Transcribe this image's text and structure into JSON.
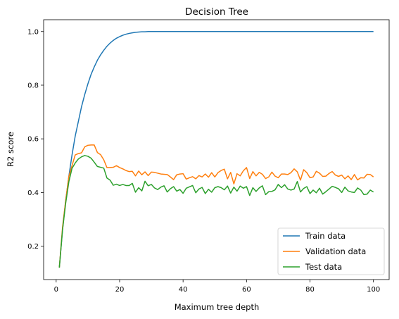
{
  "chart_data": {
    "type": "line",
    "title": "Decision Tree",
    "xlabel": "Maximum tree depth",
    "ylabel": "R2 score",
    "xlim": [
      -3.95,
      104.95
    ],
    "ylim": [
      0.0755,
      1.044
    ],
    "xticks": [
      0,
      20,
      40,
      60,
      80,
      100
    ],
    "xtick_labels": [
      "0",
      "20",
      "40",
      "60",
      "80",
      "100"
    ],
    "yticks": [
      0.2,
      0.4,
      0.6,
      0.8,
      1.0
    ],
    "ytick_labels": [
      "0.2",
      "0.4",
      "0.6",
      "0.8",
      "1.0"
    ],
    "grid": false,
    "legend_position": "lower-right",
    "colors": [
      "#1f77b4",
      "#ff7f0e",
      "#2ca02c"
    ],
    "series": [
      {
        "name": "Train data",
        "color": "#1f77b4",
        "x": [
          1,
          2,
          3,
          4,
          5,
          6,
          7,
          8,
          9,
          10,
          11,
          12,
          13,
          14,
          15,
          16,
          17,
          18,
          19,
          20,
          21,
          22,
          23,
          24,
          25,
          26,
          27,
          28,
          29,
          30,
          31,
          32,
          33,
          34,
          35,
          36,
          37,
          38,
          39,
          40,
          41,
          42,
          43,
          44,
          45,
          46,
          47,
          48,
          49,
          50,
          51,
          52,
          53,
          54,
          55,
          56,
          57,
          58,
          59,
          60,
          61,
          62,
          63,
          64,
          65,
          66,
          67,
          68,
          69,
          70,
          71,
          72,
          73,
          74,
          75,
          76,
          77,
          78,
          79,
          80,
          81,
          82,
          83,
          84,
          85,
          86,
          87,
          88,
          89,
          90,
          91,
          92,
          93,
          94,
          95,
          96,
          97,
          98,
          99,
          100
        ],
        "y": [
          0.12,
          0.26,
          0.37,
          0.46,
          0.54,
          0.61,
          0.665,
          0.72,
          0.765,
          0.805,
          0.84,
          0.868,
          0.893,
          0.913,
          0.93,
          0.945,
          0.957,
          0.967,
          0.975,
          0.981,
          0.986,
          0.99,
          0.993,
          0.995,
          0.997,
          0.998,
          0.999,
          0.999,
          1.0,
          1.0,
          1.0,
          1.0,
          1.0,
          1.0,
          1.0,
          1.0,
          1.0,
          1.0,
          1.0,
          1.0,
          1.0,
          1.0,
          1.0,
          1.0,
          1.0,
          1.0,
          1.0,
          1.0,
          1.0,
          1.0,
          1.0,
          1.0,
          1.0,
          1.0,
          1.0,
          1.0,
          1.0,
          1.0,
          1.0,
          1.0,
          1.0,
          1.0,
          1.0,
          1.0,
          1.0,
          1.0,
          1.0,
          1.0,
          1.0,
          1.0,
          1.0,
          1.0,
          1.0,
          1.0,
          1.0,
          1.0,
          1.0,
          1.0,
          1.0,
          1.0,
          1.0,
          1.0,
          1.0,
          1.0,
          1.0,
          1.0,
          1.0,
          1.0,
          1.0,
          1.0,
          1.0,
          1.0,
          1.0,
          1.0,
          1.0,
          1.0,
          1.0,
          1.0,
          1.0,
          1.0
        ]
      },
      {
        "name": "Validation data",
        "color": "#ff7f0e",
        "x": [
          1,
          2,
          3,
          4,
          5,
          6,
          7,
          8,
          9,
          10,
          11,
          12,
          13,
          14,
          15,
          16,
          17,
          18,
          19,
          20,
          21,
          22,
          23,
          24,
          25,
          26,
          27,
          28,
          29,
          30,
          31,
          32,
          33,
          34,
          35,
          36,
          37,
          38,
          39,
          40,
          41,
          42,
          43,
          44,
          45,
          46,
          47,
          48,
          49,
          50,
          51,
          52,
          53,
          54,
          55,
          56,
          57,
          58,
          59,
          60,
          61,
          62,
          63,
          64,
          65,
          66,
          67,
          68,
          69,
          70,
          71,
          72,
          73,
          74,
          75,
          76,
          77,
          78,
          79,
          80,
          81,
          82,
          83,
          84,
          85,
          86,
          87,
          88,
          89,
          90,
          91,
          92,
          93,
          94,
          95,
          96,
          97,
          98,
          99,
          100
        ],
        "y": [
          0.12,
          0.27,
          0.37,
          0.46,
          0.5,
          0.54,
          0.545,
          0.548,
          0.57,
          0.576,
          0.577,
          0.577,
          0.549,
          0.541,
          0.522,
          0.493,
          0.493,
          0.494,
          0.5,
          0.493,
          0.488,
          0.482,
          0.478,
          0.479,
          0.462,
          0.48,
          0.466,
          0.477,
          0.463,
          0.476,
          0.475,
          0.472,
          0.469,
          0.468,
          0.467,
          0.458,
          0.448,
          0.466,
          0.469,
          0.47,
          0.45,
          0.455,
          0.459,
          0.451,
          0.463,
          0.458,
          0.469,
          0.457,
          0.474,
          0.458,
          0.474,
          0.482,
          0.487,
          0.451,
          0.475,
          0.432,
          0.47,
          0.462,
          0.481,
          0.493,
          0.452,
          0.478,
          0.462,
          0.475,
          0.468,
          0.452,
          0.458,
          0.476,
          0.461,
          0.455,
          0.469,
          0.469,
          0.467,
          0.474,
          0.488,
          0.477,
          0.446,
          0.485,
          0.474,
          0.455,
          0.458,
          0.479,
          0.472,
          0.46,
          0.461,
          0.471,
          0.478,
          0.465,
          0.46,
          0.465,
          0.451,
          0.462,
          0.448,
          0.467,
          0.447,
          0.455,
          0.454,
          0.468,
          0.467,
          0.458
        ]
      },
      {
        "name": "Test data",
        "color": "#2ca02c",
        "x": [
          1,
          2,
          3,
          4,
          5,
          6,
          7,
          8,
          9,
          10,
          11,
          12,
          13,
          14,
          15,
          16,
          17,
          18,
          19,
          20,
          21,
          22,
          23,
          24,
          25,
          26,
          27,
          28,
          29,
          30,
          31,
          32,
          33,
          34,
          35,
          36,
          37,
          38,
          39,
          40,
          41,
          42,
          43,
          44,
          45,
          46,
          47,
          48,
          49,
          50,
          51,
          52,
          53,
          54,
          55,
          56,
          57,
          58,
          59,
          60,
          61,
          62,
          63,
          64,
          65,
          66,
          67,
          68,
          69,
          70,
          71,
          72,
          73,
          74,
          75,
          76,
          77,
          78,
          79,
          80,
          81,
          82,
          83,
          84,
          85,
          86,
          87,
          88,
          89,
          90,
          91,
          92,
          93,
          94,
          95,
          96,
          97,
          98,
          99,
          100
        ],
        "y": [
          0.12,
          0.26,
          0.36,
          0.44,
          0.49,
          0.51,
          0.525,
          0.533,
          0.538,
          0.535,
          0.528,
          0.513,
          0.497,
          0.494,
          0.491,
          0.454,
          0.446,
          0.427,
          0.431,
          0.426,
          0.43,
          0.426,
          0.426,
          0.434,
          0.401,
          0.418,
          0.406,
          0.442,
          0.425,
          0.43,
          0.417,
          0.411,
          0.42,
          0.425,
          0.402,
          0.414,
          0.422,
          0.405,
          0.411,
          0.397,
          0.416,
          0.421,
          0.426,
          0.399,
          0.413,
          0.419,
          0.396,
          0.412,
          0.401,
          0.418,
          0.422,
          0.418,
          0.41,
          0.424,
          0.398,
          0.42,
          0.405,
          0.424,
          0.416,
          0.422,
          0.389,
          0.418,
          0.404,
          0.417,
          0.425,
          0.392,
          0.403,
          0.404,
          0.41,
          0.43,
          0.418,
          0.429,
          0.413,
          0.409,
          0.413,
          0.441,
          0.402,
          0.415,
          0.422,
          0.396,
          0.409,
          0.399,
          0.416,
          0.394,
          0.403,
          0.413,
          0.423,
          0.419,
          0.414,
          0.4,
          0.42,
          0.406,
          0.402,
          0.4,
          0.417,
          0.409,
          0.392,
          0.394,
          0.409,
          0.402
        ]
      }
    ]
  }
}
